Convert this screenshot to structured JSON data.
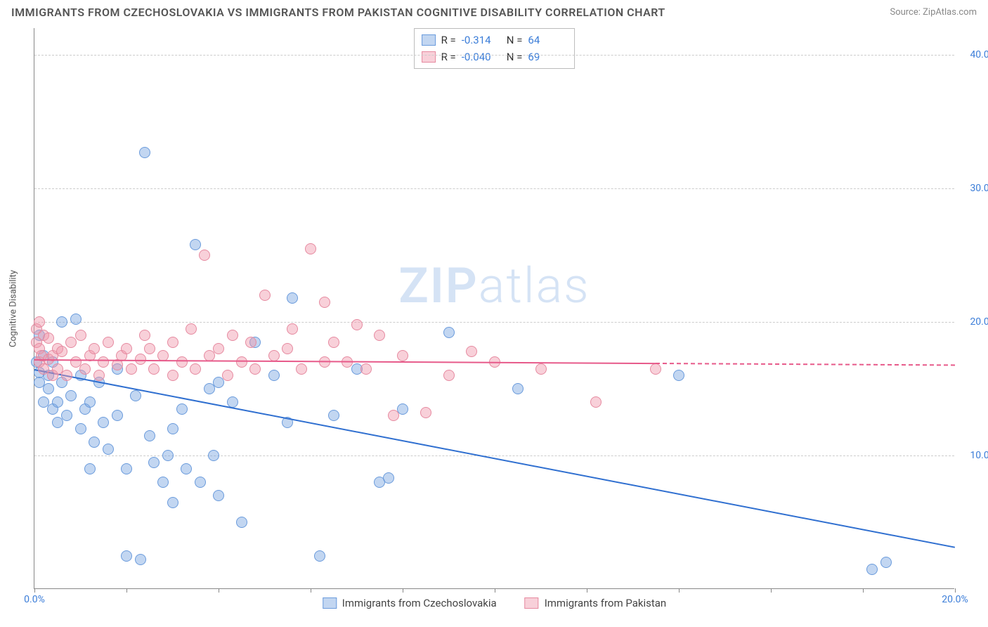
{
  "title": "IMMIGRANTS FROM CZECHOSLOVAKIA VS IMMIGRANTS FROM PAKISTAN COGNITIVE DISABILITY CORRELATION CHART",
  "source": "Source: ZipAtlas.com",
  "watermark_a": "ZIP",
  "watermark_b": "atlas",
  "y_axis_label": "Cognitive Disability",
  "chart": {
    "type": "scatter",
    "xlim": [
      0,
      20
    ],
    "ylim": [
      0,
      42
    ],
    "x_ticks": [
      0,
      2,
      4,
      6,
      8,
      10,
      12,
      14,
      16,
      18,
      20
    ],
    "x_tick_labels": {
      "0": "0.0%",
      "20": "20.0%"
    },
    "y_ticks": [
      10,
      20,
      30,
      40
    ],
    "y_tick_labels": {
      "10": "10.0%",
      "20": "20.0%",
      "30": "30.0%",
      "40": "40.0%"
    },
    "grid_color": "#cccccc",
    "background": "#ffffff",
    "marker_radius": 8,
    "series": [
      {
        "name": "Immigrants from Czechoslovakia",
        "R": "-0.314",
        "N": "64",
        "fill": "rgba(120,165,225,0.45)",
        "stroke": "#6a9bdc",
        "line_color": "#2f6fd0",
        "trend": {
          "x1": 0.0,
          "y1": 16.5,
          "x2": 20.0,
          "y2": 3.2,
          "solid_to_x": 20.0
        },
        "points": [
          [
            0.05,
            17.0
          ],
          [
            0.1,
            16.2
          ],
          [
            0.1,
            19.0
          ],
          [
            0.1,
            15.5
          ],
          [
            0.2,
            17.5
          ],
          [
            0.2,
            14.0
          ],
          [
            0.3,
            16.0
          ],
          [
            0.3,
            15.0
          ],
          [
            0.4,
            13.5
          ],
          [
            0.4,
            17.0
          ],
          [
            0.5,
            14.0
          ],
          [
            0.5,
            12.5
          ],
          [
            0.6,
            20.0
          ],
          [
            0.6,
            15.5
          ],
          [
            0.7,
            13.0
          ],
          [
            0.8,
            14.5
          ],
          [
            0.9,
            20.2
          ],
          [
            1.0,
            16.0
          ],
          [
            1.0,
            12.0
          ],
          [
            1.1,
            13.5
          ],
          [
            1.2,
            14.0
          ],
          [
            1.2,
            9.0
          ],
          [
            1.3,
            11.0
          ],
          [
            1.4,
            15.5
          ],
          [
            1.5,
            12.5
          ],
          [
            1.6,
            10.5
          ],
          [
            1.8,
            13.0
          ],
          [
            1.8,
            16.5
          ],
          [
            2.0,
            9.0
          ],
          [
            2.0,
            2.5
          ],
          [
            2.2,
            14.5
          ],
          [
            2.3,
            2.2
          ],
          [
            2.4,
            32.7
          ],
          [
            2.5,
            11.5
          ],
          [
            2.6,
            9.5
          ],
          [
            2.8,
            8.0
          ],
          [
            2.9,
            10.0
          ],
          [
            3.0,
            12.0
          ],
          [
            3.0,
            6.5
          ],
          [
            3.2,
            13.5
          ],
          [
            3.3,
            9.0
          ],
          [
            3.5,
            25.8
          ],
          [
            3.6,
            8.0
          ],
          [
            3.8,
            15.0
          ],
          [
            3.9,
            10.0
          ],
          [
            4.0,
            7.0
          ],
          [
            4.0,
            15.5
          ],
          [
            4.3,
            14.0
          ],
          [
            4.5,
            5.0
          ],
          [
            4.8,
            18.5
          ],
          [
            5.2,
            16.0
          ],
          [
            5.5,
            12.5
          ],
          [
            5.6,
            21.8
          ],
          [
            6.2,
            2.5
          ],
          [
            6.5,
            13.0
          ],
          [
            7.0,
            16.5
          ],
          [
            7.5,
            8.0
          ],
          [
            7.7,
            8.3
          ],
          [
            8.0,
            13.5
          ],
          [
            9.0,
            19.2
          ],
          [
            10.5,
            15.0
          ],
          [
            14.0,
            16.0
          ],
          [
            18.2,
            1.5
          ],
          [
            18.5,
            2.0
          ]
        ]
      },
      {
        "name": "Immigrants from Pakistan",
        "R": "-0.040",
        "N": "69",
        "fill": "rgba(240,150,170,0.45)",
        "stroke": "#e68aa0",
        "line_color": "#e75a8a",
        "trend": {
          "x1": 0.0,
          "y1": 17.2,
          "x2": 20.0,
          "y2": 16.8,
          "solid_to_x": 13.5
        },
        "points": [
          [
            0.05,
            18.5
          ],
          [
            0.05,
            19.5
          ],
          [
            0.1,
            17.0
          ],
          [
            0.1,
            18.0
          ],
          [
            0.1,
            20.0
          ],
          [
            0.15,
            17.5
          ],
          [
            0.2,
            16.5
          ],
          [
            0.2,
            19.0
          ],
          [
            0.3,
            17.2
          ],
          [
            0.3,
            18.8
          ],
          [
            0.4,
            16.0
          ],
          [
            0.4,
            17.5
          ],
          [
            0.5,
            18.0
          ],
          [
            0.5,
            16.5
          ],
          [
            0.6,
            17.8
          ],
          [
            0.7,
            16.0
          ],
          [
            0.8,
            18.5
          ],
          [
            0.9,
            17.0
          ],
          [
            1.0,
            19.0
          ],
          [
            1.1,
            16.5
          ],
          [
            1.2,
            17.5
          ],
          [
            1.3,
            18.0
          ],
          [
            1.4,
            16.0
          ],
          [
            1.5,
            17.0
          ],
          [
            1.6,
            18.5
          ],
          [
            1.8,
            16.8
          ],
          [
            1.9,
            17.5
          ],
          [
            2.0,
            18.0
          ],
          [
            2.1,
            16.5
          ],
          [
            2.3,
            17.2
          ],
          [
            2.4,
            19.0
          ],
          [
            2.5,
            18.0
          ],
          [
            2.6,
            16.5
          ],
          [
            2.8,
            17.5
          ],
          [
            3.0,
            18.5
          ],
          [
            3.0,
            16.0
          ],
          [
            3.2,
            17.0
          ],
          [
            3.4,
            19.5
          ],
          [
            3.5,
            16.5
          ],
          [
            3.7,
            25.0
          ],
          [
            3.8,
            17.5
          ],
          [
            4.0,
            18.0
          ],
          [
            4.2,
            16.0
          ],
          [
            4.3,
            19.0
          ],
          [
            4.5,
            17.0
          ],
          [
            4.7,
            18.5
          ],
          [
            4.8,
            16.5
          ],
          [
            5.0,
            22.0
          ],
          [
            5.2,
            17.5
          ],
          [
            5.5,
            18.0
          ],
          [
            5.6,
            19.5
          ],
          [
            5.8,
            16.5
          ],
          [
            6.0,
            25.5
          ],
          [
            6.3,
            17.0
          ],
          [
            6.3,
            21.5
          ],
          [
            6.5,
            18.5
          ],
          [
            6.8,
            17.0
          ],
          [
            7.0,
            19.8
          ],
          [
            7.2,
            16.5
          ],
          [
            7.5,
            19.0
          ],
          [
            7.8,
            13.0
          ],
          [
            8.0,
            17.5
          ],
          [
            8.5,
            13.2
          ],
          [
            9.0,
            16.0
          ],
          [
            9.5,
            17.8
          ],
          [
            10.0,
            17.0
          ],
          [
            11.0,
            16.5
          ],
          [
            12.2,
            14.0
          ],
          [
            13.5,
            16.5
          ]
        ]
      }
    ]
  },
  "legend_bottom": [
    "Immigrants from Czechoslovakia",
    "Immigrants from Pakistan"
  ]
}
